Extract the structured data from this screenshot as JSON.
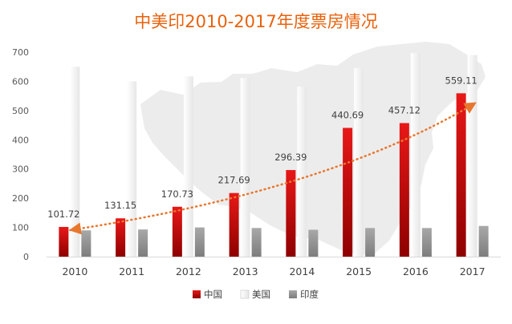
{
  "chart_data": {
    "type": "bar",
    "title": "中美印2010-2017年度票房情况",
    "categories": [
      "2010",
      "2011",
      "2012",
      "2013",
      "2014",
      "2015",
      "2016",
      "2017"
    ],
    "series": [
      {
        "name": "中国",
        "values": [
          101.72,
          131.15,
          170.73,
          217.69,
          296.39,
          440.69,
          457.12,
          559.11
        ],
        "color": "#d80c0c",
        "data_labels": [
          "101.72",
          "131.15",
          "170.73",
          "217.69",
          "296.39",
          "440.69",
          "457.12",
          "559.11"
        ]
      },
      {
        "name": "美国",
        "values": [
          650,
          600,
          617,
          612,
          582,
          645,
          697,
          690
        ],
        "color": "#f0f0f0"
      },
      {
        "name": "印度",
        "values": [
          90,
          93,
          100,
          98,
          92,
          98,
          98,
          105
        ],
        "color": "#999999"
      }
    ],
    "trendline": {
      "series": "中国",
      "style": "dotted",
      "arrows": "both",
      "color": "#e8772e"
    },
    "yticks": [
      "0",
      "100",
      "200",
      "300",
      "400",
      "500",
      "600",
      "700"
    ],
    "ylim": [
      0,
      700
    ],
    "xlabel": "",
    "ylabel": "",
    "grid": false,
    "legend_position": "bottom",
    "title_color": "#e8620c",
    "background": "map of China (decorative)"
  }
}
